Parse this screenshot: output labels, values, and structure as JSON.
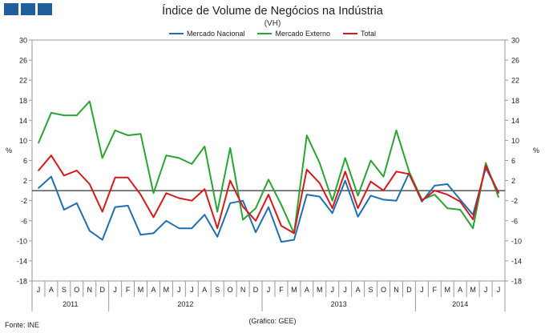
{
  "title": "Índice de Volume de Negócios na Indústria",
  "subtitle": "(VH)",
  "source": "Fonte: INE",
  "credit": "(Gráfico: GEE)",
  "chart_data": {
    "type": "line",
    "y_unit_label": "%",
    "ylim": [
      -18,
      30
    ],
    "yticks": [
      -18,
      -14,
      -10,
      -6,
      -2,
      2,
      6,
      10,
      14,
      18,
      22,
      26,
      30
    ],
    "x": [
      "J",
      "A",
      "S",
      "O",
      "N",
      "D",
      "J",
      "F",
      "M",
      "A",
      "M",
      "J",
      "J",
      "A",
      "S",
      "O",
      "N",
      "D",
      "J",
      "F",
      "M",
      "A",
      "M",
      "J",
      "J",
      "A",
      "S",
      "O",
      "N",
      "D",
      "J",
      "F",
      "M",
      "A",
      "M",
      "J",
      "J"
    ],
    "years": [
      {
        "label": "2011",
        "start": 0,
        "end": 5
      },
      {
        "label": "2012",
        "start": 6,
        "end": 17
      },
      {
        "label": "2013",
        "start": 18,
        "end": 29
      },
      {
        "label": "2014",
        "start": 30,
        "end": 36
      }
    ],
    "series": [
      {
        "name": "Mercado Nacional",
        "color": "#1f6fb4",
        "values": [
          0.5,
          2.8,
          -3.8,
          -2.5,
          -8.0,
          -9.8,
          -3.3,
          -3.0,
          -8.8,
          -8.5,
          -6.0,
          -7.5,
          -7.5,
          -4.8,
          -9.2,
          -2.5,
          -2.0,
          -8.3,
          -3.3,
          -10.2,
          -9.8,
          -0.8,
          -1.2,
          -4.5,
          2.0,
          -5.2,
          -1.0,
          -1.8,
          -2.0,
          3.5,
          -2.2,
          1.0,
          1.3,
          -1.8,
          -4.8,
          4.5,
          -0.3
        ]
      },
      {
        "name": "Mercado Externo",
        "color": "#2aa532",
        "values": [
          9.5,
          15.5,
          15.0,
          15.0,
          17.8,
          6.5,
          12.0,
          11.0,
          11.3,
          -0.5,
          7.0,
          6.5,
          5.3,
          8.8,
          -4.2,
          8.5,
          -5.8,
          -3.5,
          2.2,
          -2.8,
          -8.5,
          11.0,
          5.5,
          -2.0,
          6.5,
          -1.0,
          6.0,
          2.8,
          12.0,
          3.8,
          -1.8,
          -0.8,
          -3.5,
          -3.8,
          -7.5,
          5.5,
          -1.3
        ]
      },
      {
        "name": "Total",
        "color": "#d7191c",
        "values": [
          4.0,
          7.0,
          3.0,
          4.0,
          1.3,
          -4.2,
          2.6,
          2.6,
          -0.8,
          -5.3,
          -0.5,
          -1.5,
          -2.0,
          0.3,
          -7.5,
          2.0,
          -3.2,
          -6.0,
          -0.8,
          -7.0,
          -8.5,
          4.2,
          1.5,
          -3.5,
          3.8,
          -3.5,
          1.8,
          0.0,
          3.8,
          3.3,
          -2.0,
          0.0,
          -0.8,
          -2.2,
          -5.7,
          5.0,
          -0.5
        ]
      }
    ]
  }
}
